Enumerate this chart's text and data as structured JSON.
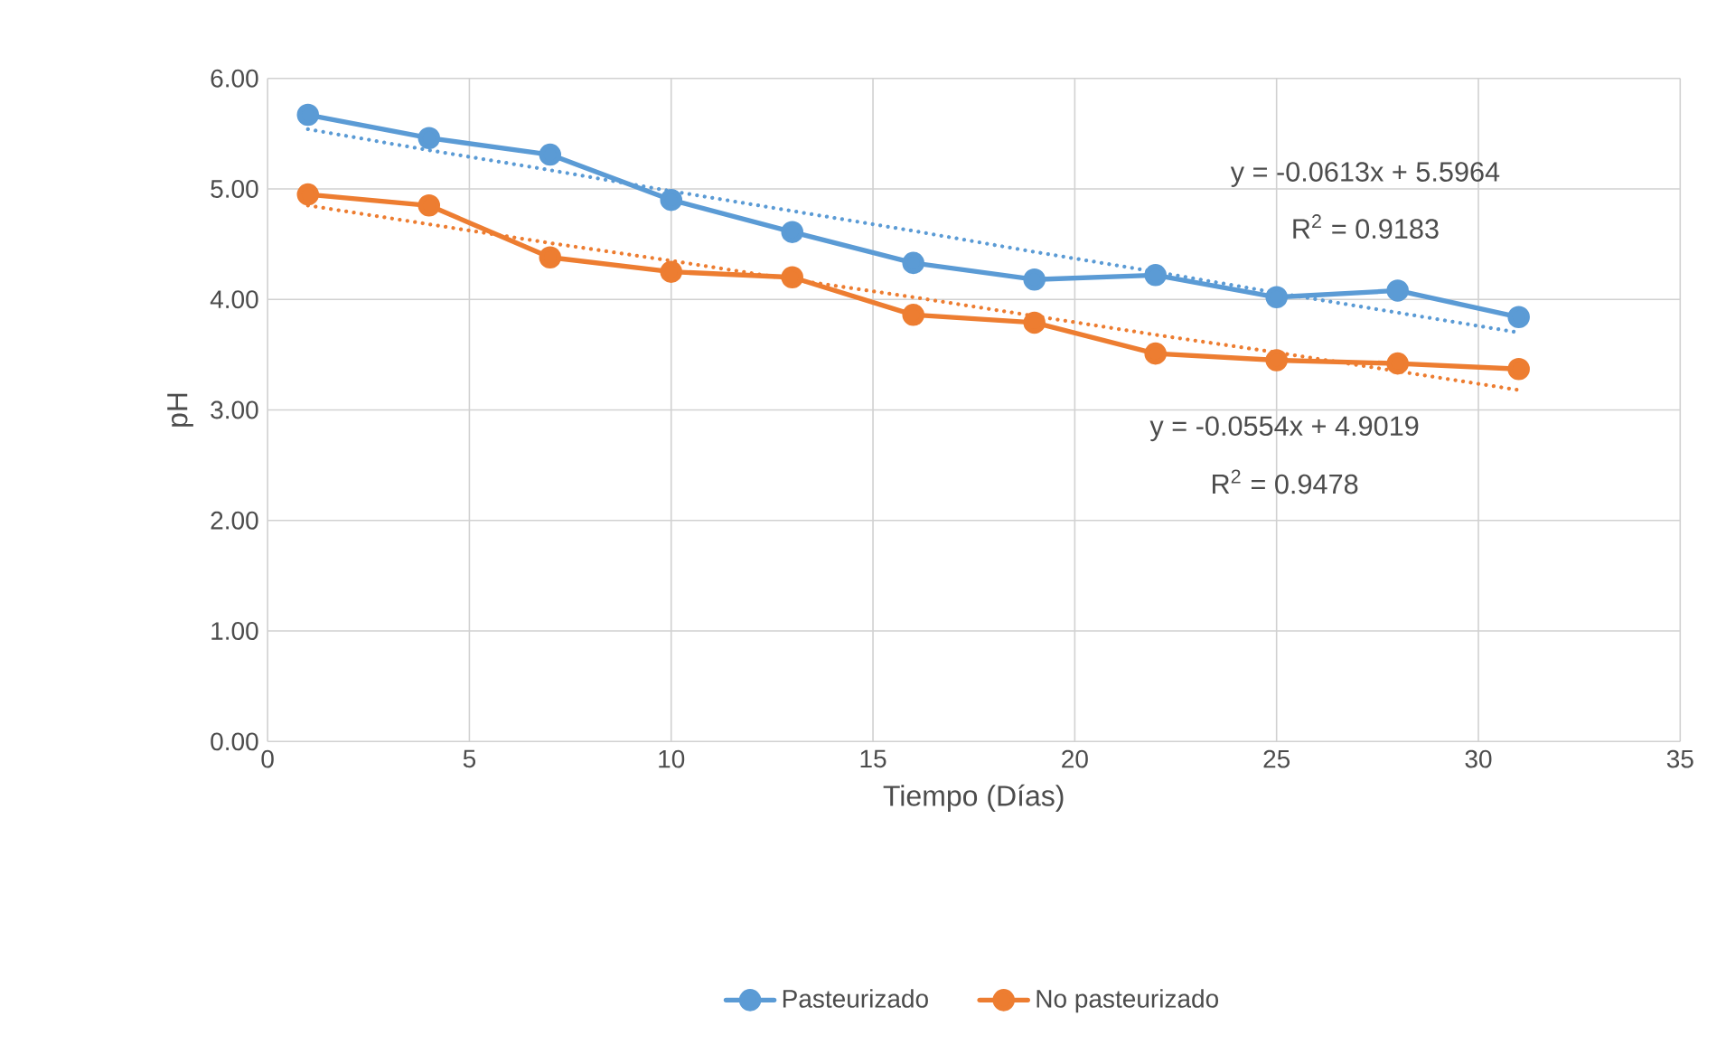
{
  "chart_data": {
    "type": "line",
    "xlabel": "Tiempo (Días)",
    "ylabel": "pH",
    "xlim": [
      0,
      35
    ],
    "xticks": [
      0,
      5,
      10,
      15,
      20,
      25,
      30,
      35
    ],
    "ylim": [
      0,
      6
    ],
    "yticks": [
      {
        "value": 0,
        "label": "0.00"
      },
      {
        "value": 1,
        "label": "1.00"
      },
      {
        "value": 2,
        "label": "2.00"
      },
      {
        "value": 3,
        "label": "3.00"
      },
      {
        "value": 4,
        "label": "4.00"
      },
      {
        "value": 5,
        "label": "5.00"
      },
      {
        "value": 6,
        "label": "6.00"
      }
    ],
    "grid": true,
    "legend": "bottom",
    "x": [
      1,
      4,
      7,
      10,
      13,
      16,
      19,
      22,
      25,
      28,
      31
    ],
    "series": [
      {
        "name": "Pasteurizado",
        "color": "#5b9bd5",
        "marker": "circle",
        "line_style": "solid",
        "values": [
          5.67,
          5.46,
          5.31,
          4.9,
          4.61,
          4.33,
          4.18,
          4.22,
          4.02,
          4.08,
          3.84
        ]
      },
      {
        "name": "No pasteurizado",
        "color": "#ed7d31",
        "marker": "circle",
        "line_style": "solid",
        "values": [
          4.95,
          4.85,
          4.38,
          4.25,
          4.2,
          3.86,
          3.79,
          3.51,
          3.45,
          3.42,
          3.37
        ]
      },
      {
        "type": "line",
        "color": "#5b9bd5",
        "marker": "none",
        "line_style": "dotted",
        "values": [
          5.54,
          5.35,
          5.17,
          4.98,
          4.8,
          4.62,
          4.43,
          4.25,
          4.06,
          3.88,
          3.7
        ]
      },
      {
        "type": "line",
        "color": "#ed7d31",
        "marker": "none",
        "line_style": "dotted",
        "values": [
          4.85,
          4.68,
          4.51,
          4.35,
          4.18,
          4.02,
          3.85,
          3.68,
          3.52,
          3.35,
          3.18
        ]
      }
    ],
    "annotations": [
      "y = -0.0613x + 5.5964",
      "R$^{2}$ = 0.9183",
      "y = -0.0554x + 4.9019",
      "R$^{2}$ = 0.9478"
    ]
  }
}
